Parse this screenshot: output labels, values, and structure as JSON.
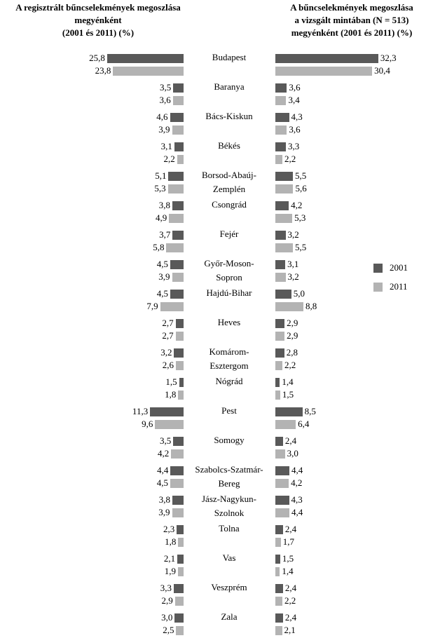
{
  "chart_data": [
    {
      "type": "bar",
      "orientation": "horizontal",
      "direction": "left",
      "title": "A regisztrált bűncselekmények megoszlása\nmegyénként\n(2001 és 2011) (%)",
      "categories": [
        "Budapest",
        "Baranya",
        "Bács-Kiskun",
        "Békés",
        "Borsod-Abaúj-\nZemplén",
        "Csongrád",
        "Fejér",
        "Győr-Moson-\nSopron",
        "Hajdú-Bihar",
        "Heves",
        "Komárom-\nEsztergom",
        "Nógrád",
        "Pest",
        "Somogy",
        "Szabolcs-Szatmár-\nBereg",
        "Jász-Nagykun-\nSzolnok",
        "Tolna",
        "Vas",
        "Veszprém",
        "Zala"
      ],
      "xlim": [
        0,
        26
      ],
      "series": [
        {
          "color": "#595959",
          "values": [
            25.8,
            3.5,
            4.6,
            3.1,
            5.1,
            3.8,
            3.7,
            4.5,
            4.5,
            2.7,
            3.2,
            1.5,
            11.3,
            3.5,
            4.4,
            3.8,
            2.3,
            2.1,
            3.3,
            3.0
          ],
          "value_labels": [
            "25,8",
            "3,5",
            "4,6",
            "3,1",
            "5,1",
            "3,8",
            "3,7",
            "4,5",
            "4,5",
            "2,7",
            "3,2",
            "1,5",
            "11,3",
            "3,5",
            "4,4",
            "3,8",
            "2,3",
            "2,1",
            "3,3",
            "3,0"
          ]
        },
        {
          "color": "#b3b3b3",
          "values": [
            23.8,
            3.6,
            3.9,
            2.2,
            5.3,
            4.9,
            5.8,
            3.9,
            7.9,
            2.7,
            2.6,
            1.8,
            9.6,
            4.2,
            4.5,
            3.9,
            1.8,
            1.9,
            2.9,
            2.5
          ],
          "value_labels": [
            "23,8",
            "3,6",
            "3,9",
            "2,2",
            "5,3",
            "4,9",
            "5,8",
            "3,9",
            "7,9",
            "2,7",
            "2,6",
            "1,8",
            "9,6",
            "4,2",
            "4,5",
            "3,9",
            "1,8",
            "1,9",
            "2,9",
            "2,5"
          ]
        }
      ]
    },
    {
      "type": "bar",
      "orientation": "horizontal",
      "direction": "right",
      "title": "A bűncselekmények megoszlása\na vizsgált mintában (N = 513)\nmegyénként (2001 és 2011) (%)",
      "xlim": [
        0,
        33
      ],
      "legend": "right",
      "series": [
        {
          "name": "2001",
          "color": "#595959",
          "values": [
            32.3,
            3.6,
            4.3,
            3.3,
            5.5,
            4.2,
            3.2,
            3.1,
            5.0,
            2.9,
            2.8,
            1.4,
            8.5,
            2.4,
            4.4,
            4.3,
            2.4,
            1.5,
            2.4,
            2.4
          ],
          "value_labels": [
            "32,3",
            "3,6",
            "4,3",
            "3,3",
            "5,5",
            "4,2",
            "3,2",
            "3,1",
            "5,0",
            "2,9",
            "2,8",
            "1,4",
            "8,5",
            "2,4",
            "4,4",
            "4,3",
            "2,4",
            "1,5",
            "2,4",
            "2,4"
          ]
        },
        {
          "name": "2011",
          "color": "#b3b3b3",
          "values": [
            30.4,
            3.4,
            3.6,
            2.2,
            5.6,
            5.3,
            5.5,
            3.2,
            8.8,
            2.9,
            2.2,
            1.5,
            6.4,
            3.0,
            4.2,
            4.4,
            1.7,
            1.4,
            2.2,
            2.1
          ],
          "value_labels": [
            "30,4",
            "3,4",
            "3,6",
            "2,2",
            "5,6",
            "5,3",
            "5,5",
            "3,2",
            "8,8",
            "2,9",
            "2,2",
            "1,5",
            "6,4",
            "3,0",
            "4,2",
            "4,4",
            "1,7",
            "1,4",
            "2,2",
            "2,1"
          ]
        }
      ]
    }
  ]
}
